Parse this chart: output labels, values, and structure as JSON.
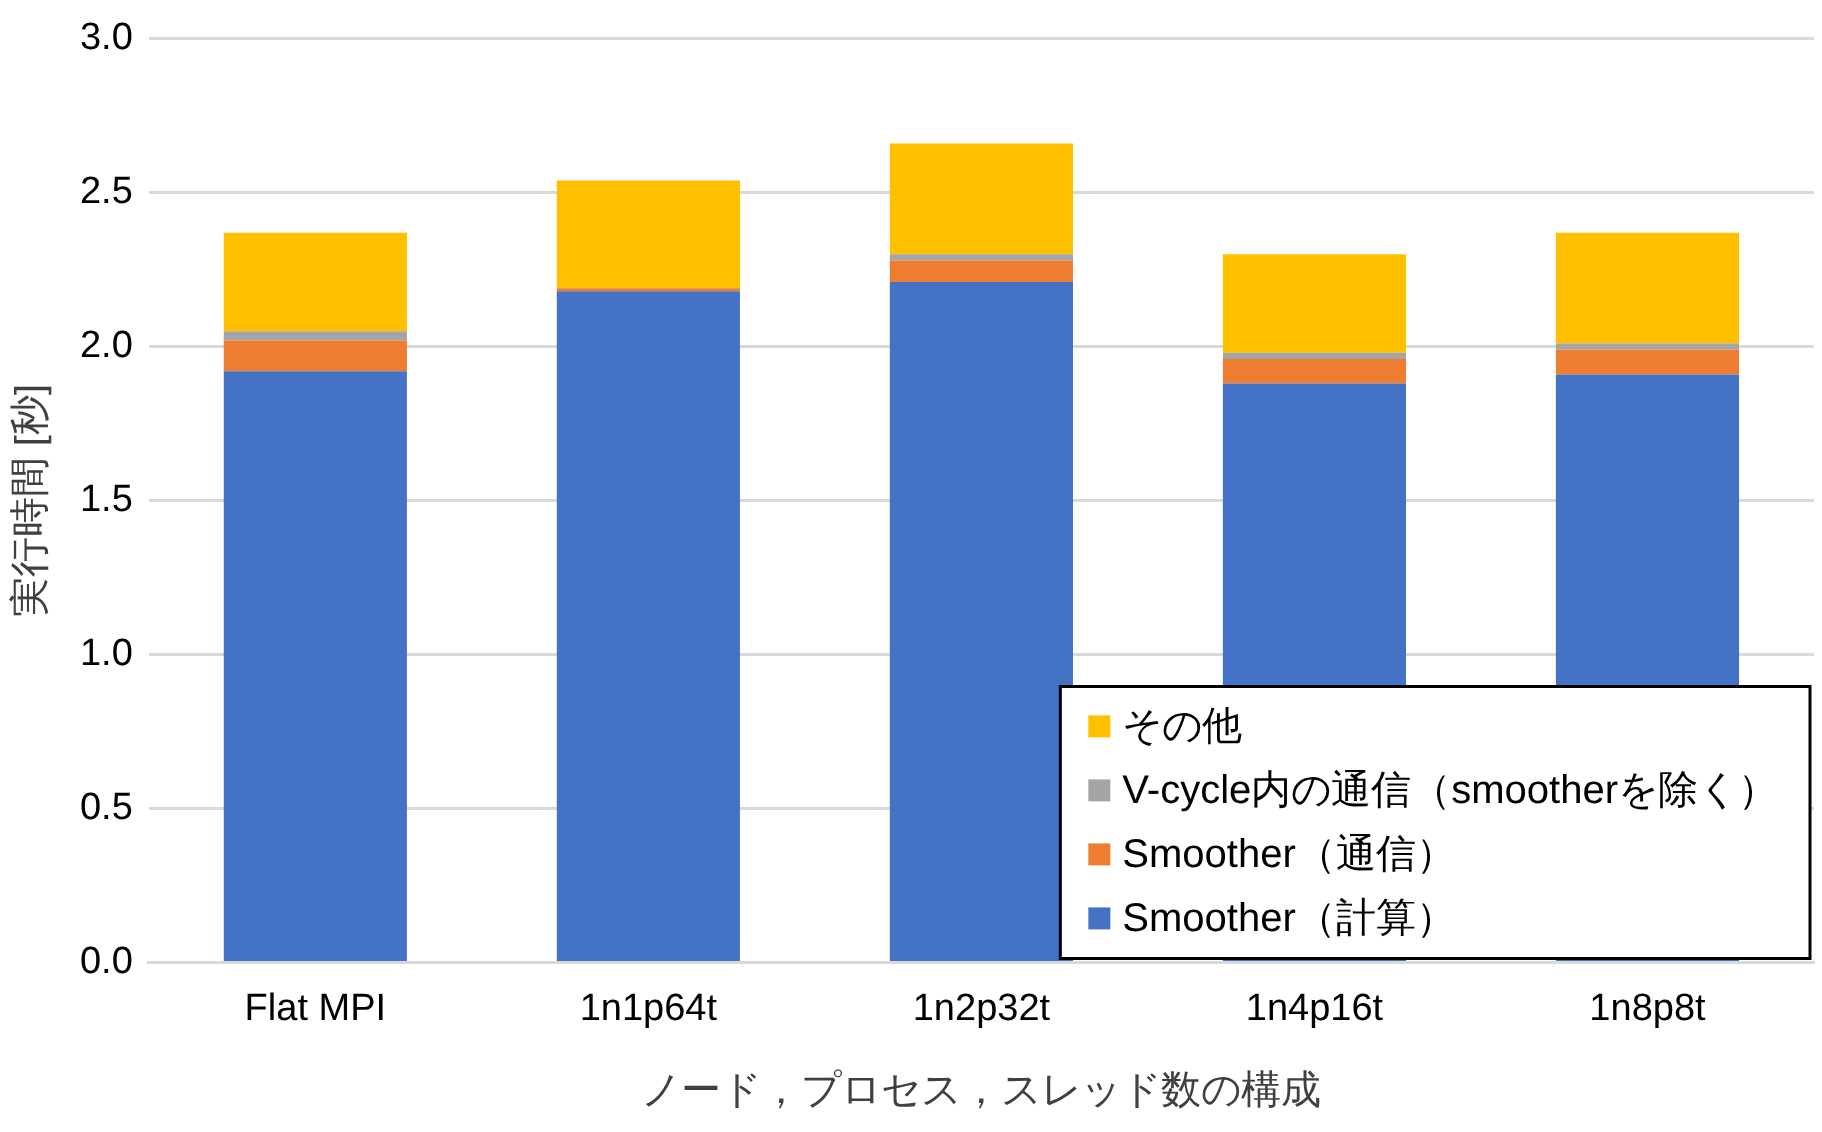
{
  "chart_data": {
    "type": "bar",
    "stacked": true,
    "xlabel": "ノード，プロセス，スレッド数の構成",
    "ylabel": "実行時間 [秒]",
    "categories": [
      "Flat MPI",
      "1n1p64t",
      "1n2p32t",
      "1n4p16t",
      "1n8p8t"
    ],
    "series": [
      {
        "name": "Smoother（計算）",
        "color": "#4472c4",
        "values": [
          1.92,
          2.18,
          2.21,
          1.88,
          1.91
        ]
      },
      {
        "name": "Smoother（通信）",
        "color": "#ed7d31",
        "values": [
          0.1,
          0.01,
          0.07,
          0.08,
          0.08
        ]
      },
      {
        "name": "V-cycle内の通信（smootherを除く）",
        "color": "#a5a5a5",
        "values": [
          0.03,
          0.0,
          0.02,
          0.02,
          0.02
        ]
      },
      {
        "name": "その他",
        "color": "#ffc000",
        "values": [
          0.32,
          0.35,
          0.36,
          0.32,
          0.36
        ]
      }
    ],
    "ylim": [
      0,
      3
    ],
    "yticks": [
      {
        "value": 0,
        "label": "0.0"
      },
      {
        "value": 0.5,
        "label": "0.5"
      },
      {
        "value": 1,
        "label": "1.0"
      },
      {
        "value": 1.5,
        "label": "1.5"
      },
      {
        "value": 2,
        "label": "2.0"
      },
      {
        "value": 2.5,
        "label": "2.5"
      },
      {
        "value": 3,
        "label": "3.0"
      }
    ],
    "grid": "y",
    "legend": "bottom right"
  }
}
